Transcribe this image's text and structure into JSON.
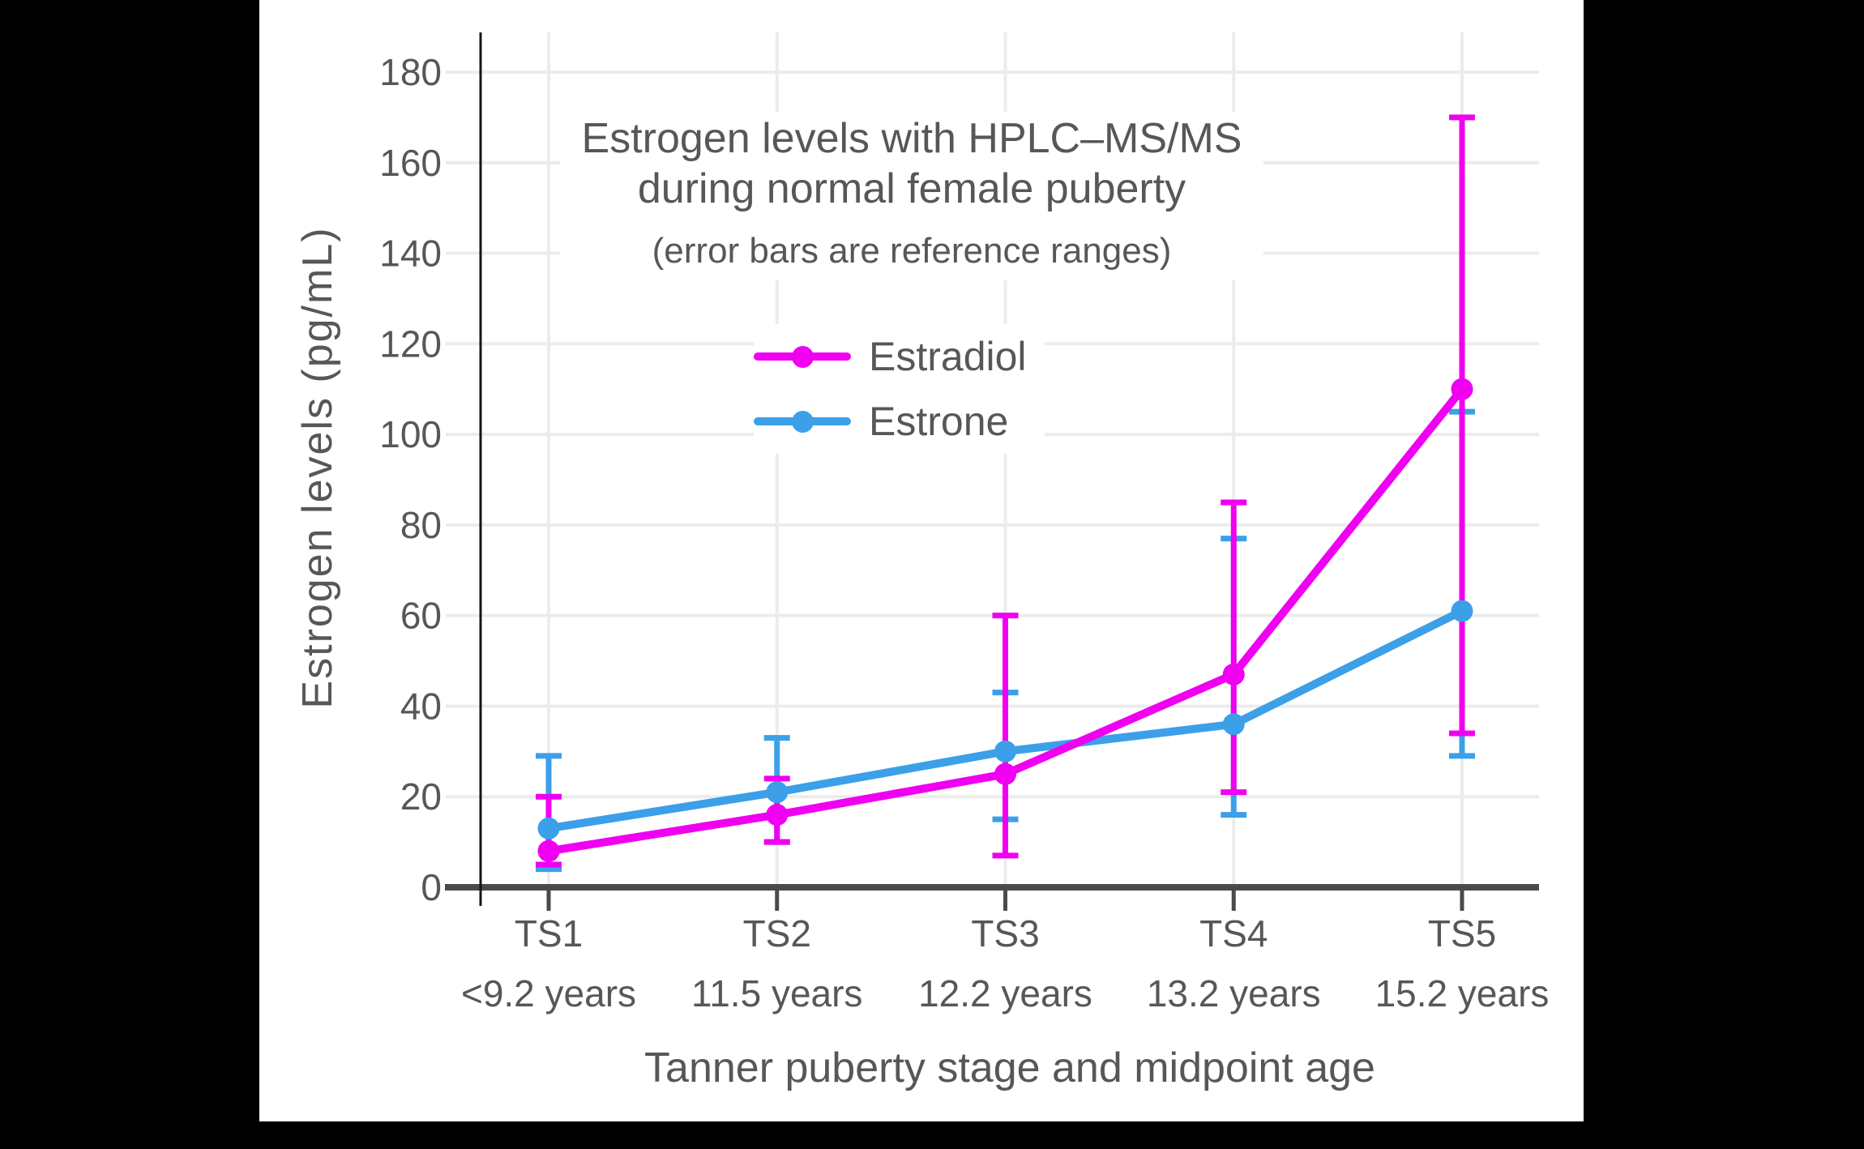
{
  "window": {
    "background": "#000000",
    "figure_background": "#ffffff"
  },
  "chart_data": {
    "type": "line",
    "title": "Estrogen levels with HPLC–MS/MS",
    "title_line2": "during normal female puberty",
    "subtitle": "(error bars are reference ranges)",
    "xlabel": "Tanner puberty stage and midpoint age",
    "ylabel": "Estrogen levels (pg/mL)",
    "categories": [
      {
        "stage": "TS1",
        "age": "<9.2 years"
      },
      {
        "stage": "TS2",
        "age": "11.5 years"
      },
      {
        "stage": "TS3",
        "age": "12.2 years"
      },
      {
        "stage": "TS4",
        "age": "13.2 years"
      },
      {
        "stage": "TS5",
        "age": "15.2 years"
      }
    ],
    "series": [
      {
        "name": "Estradiol",
        "color": "#F000F0",
        "values": [
          8,
          16,
          25,
          47,
          110
        ],
        "error_low": [
          5,
          10,
          7,
          21,
          34
        ],
        "error_high": [
          20,
          24,
          60,
          85,
          170
        ]
      },
      {
        "name": "Estrone",
        "color": "#3BA0E8",
        "values": [
          13,
          21,
          30,
          36,
          61
        ],
        "error_low": [
          4,
          10,
          15,
          16,
          29
        ],
        "error_high": [
          29,
          33,
          43,
          77,
          105
        ]
      }
    ],
    "yticks": [
      0,
      20,
      40,
      60,
      80,
      100,
      120,
      140,
      160,
      180
    ],
    "ylim": [
      0,
      189
    ],
    "grid": true,
    "legend_position": "inside upper-center",
    "colors": {
      "grid": "#ececec",
      "x_axis": "#4a4a4a",
      "y_axis": "#161616",
      "text": "#56575a"
    }
  }
}
